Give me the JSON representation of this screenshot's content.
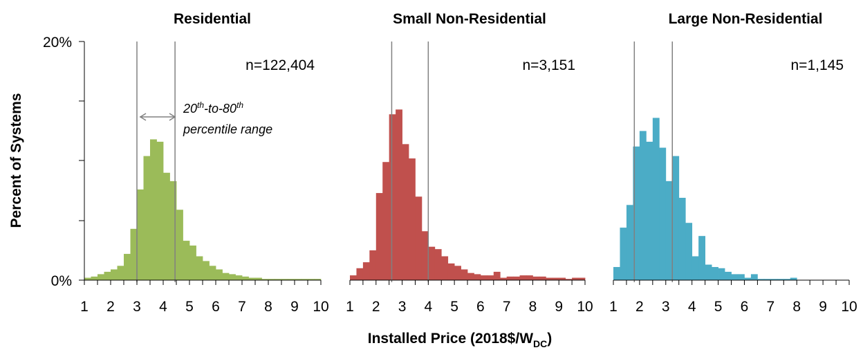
{
  "chart_data": {
    "type": "bar",
    "y_axis": {
      "label": "Percent of Systems",
      "ylim": [
        0,
        20
      ],
      "tick_labels": [
        "0%",
        "20%"
      ]
    },
    "x_axis": {
      "label_main": "Installed Price (2018$/W",
      "label_sub": "DC",
      "label_end": ")"
    },
    "x_ticks": [
      1,
      2,
      3,
      4,
      5,
      6,
      7,
      8,
      9,
      10
    ],
    "bin_start": 1,
    "bin_width": 0.25,
    "xlim": [
      1,
      10
    ],
    "annotation": {
      "line1_pre": "20",
      "line1_sup1": "th",
      "line1_mid": "-to-80",
      "line1_sup2": "th",
      "line2": "percentile range"
    },
    "panels": [
      {
        "title": "Residential",
        "n_label": "n=122,404",
        "color": "#9bbb59",
        "p20": 3.0,
        "p80": 4.45,
        "values": [
          0.2,
          0.3,
          0.5,
          0.7,
          0.9,
          1.2,
          2.2,
          4.3,
          7.6,
          10.4,
          11.8,
          11.6,
          9.0,
          8.3,
          5.9,
          3.3,
          2.9,
          2.0,
          1.6,
          1.2,
          0.9,
          0.6,
          0.5,
          0.4,
          0.3,
          0.2,
          0.2,
          0.1,
          0.1,
          0.1,
          0.1,
          0.1,
          0.1,
          0.1,
          0.1,
          0.1
        ]
      },
      {
        "title": "Small Non-Residential",
        "n_label": "n=3,151",
        "color": "#c0504d",
        "p20": 2.6,
        "p80": 4.0,
        "values": [
          0.4,
          1.0,
          1.5,
          2.5,
          7.3,
          9.9,
          13.9,
          14.3,
          11.4,
          10.2,
          7.0,
          4.1,
          2.8,
          2.6,
          2.0,
          1.4,
          1.2,
          0.9,
          0.6,
          0.5,
          0.4,
          0.4,
          0.7,
          0.2,
          0.3,
          0.3,
          0.4,
          0.4,
          0.3,
          0.3,
          0.2,
          0.2,
          0.2,
          0.1,
          0.2,
          0.2
        ]
      },
      {
        "title": "Large Non-Residential",
        "n_label": "n=1,145",
        "color": "#4bacc6",
        "p20": 1.8,
        "p80": 3.25,
        "values": [
          1.1,
          4.4,
          6.3,
          11.2,
          12.5,
          11.6,
          13.6,
          11.1,
          8.3,
          10.4,
          6.9,
          4.8,
          2.0,
          3.7,
          1.3,
          1.1,
          1.0,
          0.7,
          0.5,
          0.5,
          0.2,
          0.5,
          0.1,
          0.1,
          0.1,
          0.1,
          0.1,
          0.2,
          0.0,
          0.0,
          0.0,
          0.0,
          0.0,
          0.0,
          0.0,
          0.0
        ]
      }
    ]
  }
}
